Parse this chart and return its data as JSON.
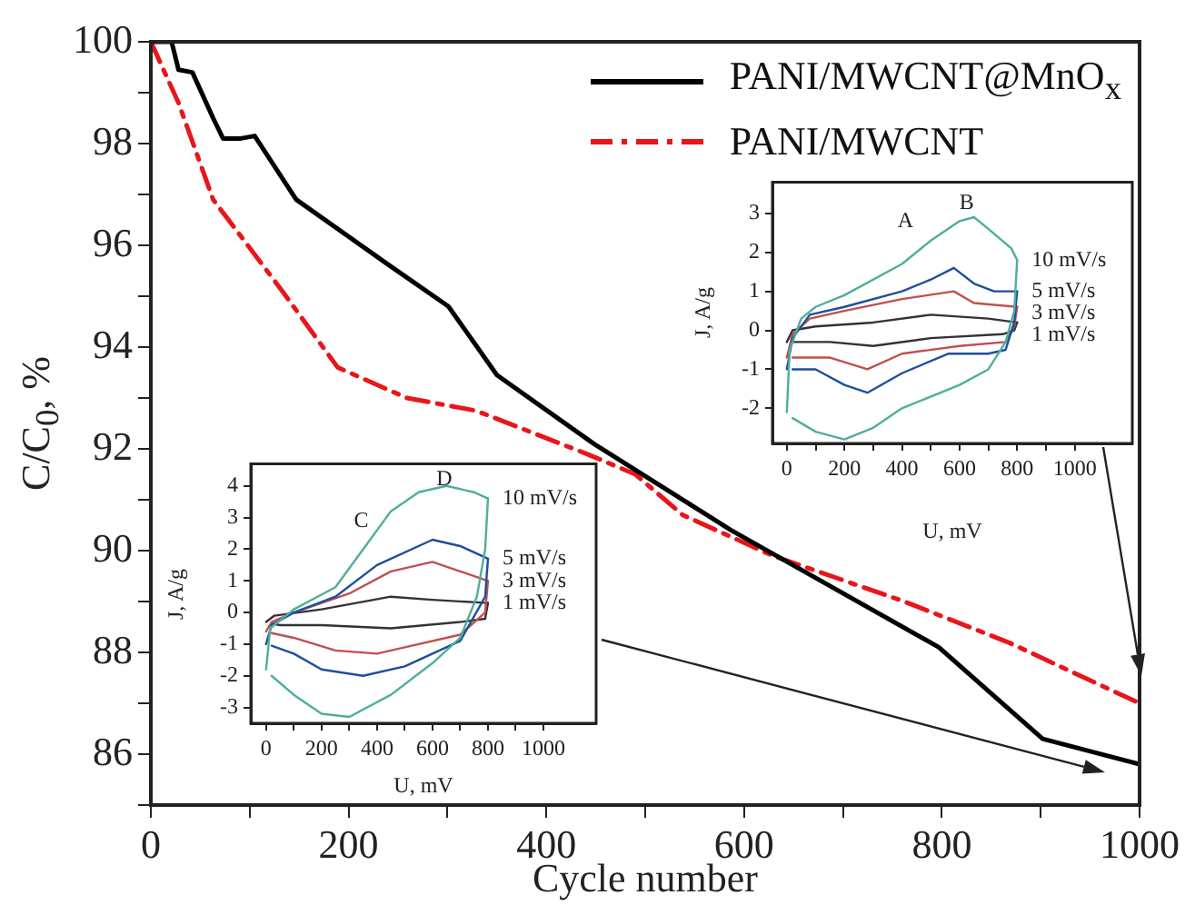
{
  "chart_data": [
    {
      "type": "line",
      "xlabel": "Cycle number",
      "ylabel": "C/C$_{0}$, %",
      "xlim": [
        0,
        1000
      ],
      "ylim": [
        85,
        100
      ],
      "xticks": [
        0,
        {
          "value": 100,
          "label": null
        },
        200,
        {
          "value": 300,
          "label": null
        },
        400,
        {
          "value": 500,
          "label": null
        },
        600,
        {
          "value": 700,
          "label": null
        },
        800,
        {
          "value": 900,
          "label": null
        },
        1000
      ],
      "yticks": [
        {
          "value": 85,
          "label": null
        },
        86,
        {
          "value": 87,
          "label": null
        },
        88,
        {
          "value": 89,
          "label": null
        },
        90,
        {
          "value": 91,
          "label": null
        },
        92,
        {
          "value": 93,
          "label": null
        },
        94,
        {
          "value": 95,
          "label": null
        },
        96,
        {
          "value": 97,
          "label": null
        },
        98,
        {
          "value": 99,
          "label": null
        },
        100
      ],
      "grid": false,
      "legend": "top right",
      "marker": "none",
      "series": [
        {
          "name": "PANI/MWCNT@MnO$_{x}$",
          "color": "#000000",
          "line_style": "solid",
          "x": [
            0,
            21,
            28,
            42,
            63,
            73,
            91,
            105,
            147,
            238,
            301,
            350,
            448,
            587,
            797,
            902,
            1000
          ],
          "values": [
            100,
            100,
            99.45,
            99.4,
            98.5,
            98.1,
            98.1,
            98.15,
            96.9,
            95.65,
            94.8,
            93.45,
            92.1,
            90.4,
            88.1,
            86.3,
            85.8
          ]
        },
        {
          "name": "PANI/MWCNT",
          "color": "#e8161b",
          "line_style": "dashed",
          "x": [
            0,
            14,
            28,
            63,
            133,
            189,
            259,
            329,
            441,
            490,
            538,
            629,
            762,
            867,
            1000
          ],
          "values": [
            100,
            99.4,
            98.8,
            96.9,
            95.1,
            93.6,
            93.0,
            92.75,
            91.9,
            91.5,
            90.7,
            89.9,
            89.0,
            88.2,
            87.0
          ]
        }
      ]
    },
    {
      "type": "line",
      "xlabel": "U, mV",
      "ylabel": "J, A/g",
      "xlim": [
        -50,
        1200
      ],
      "ylim": [
        -2.9,
        3.8
      ],
      "xticks": [
        0,
        {
          "value": 100,
          "label": null
        },
        200,
        {
          "value": 300,
          "label": null
        },
        400,
        {
          "value": 500,
          "label": null
        },
        600,
        {
          "value": 700,
          "label": null
        },
        800,
        {
          "value": 900,
          "label": null
        },
        1000
      ],
      "yticks": [
        -2,
        -1,
        0,
        1,
        2,
        3
      ],
      "grid": false,
      "marker": "none",
      "annotations": [
        "A",
        "B"
      ],
      "series": [
        {
          "name": "10 mV/s",
          "color": "#4fae9c",
          "x": [
            0,
            10,
            50,
            100,
            200,
            400,
            500,
            600,
            650,
            700,
            780,
            800
          ],
          "values": [
            -2.1,
            -0.5,
            0.3,
            0.6,
            0.9,
            1.7,
            2.3,
            2.8,
            2.9,
            2.6,
            2.1,
            1.8
          ]
        },
        {
          "color": "#4fae9c",
          "x": [
            20,
            100,
            200,
            300,
            400,
            600,
            700,
            760,
            790,
            800
          ],
          "values": [
            -2.25,
            -2.6,
            -2.8,
            -2.5,
            -2.0,
            -1.4,
            -1.0,
            -0.3,
            0.5,
            1.8
          ]
        },
        {
          "name": "5 mV/s",
          "color": "#1f4e9c",
          "x": [
            0,
            20,
            80,
            200,
            400,
            500,
            580,
            650,
            720,
            800
          ],
          "values": [
            -1.0,
            -0.2,
            0.4,
            0.6,
            1.0,
            1.3,
            1.6,
            1.2,
            1.0,
            1.0
          ]
        },
        {
          "color": "#1f4e9c",
          "x": [
            20,
            100,
            200,
            280,
            400,
            560,
            700,
            760,
            790,
            800
          ],
          "values": [
            -1.0,
            -1.0,
            -1.4,
            -1.6,
            -1.1,
            -0.6,
            -0.6,
            -0.5,
            0.2,
            1.0
          ]
        },
        {
          "name": "3 mV/s",
          "color": "#c0504d",
          "x": [
            0,
            20,
            80,
            200,
            400,
            580,
            650,
            800
          ],
          "values": [
            -0.7,
            -0.1,
            0.3,
            0.5,
            0.8,
            1.0,
            0.7,
            0.6
          ]
        },
        {
          "color": "#c0504d",
          "x": [
            20,
            150,
            280,
            400,
            600,
            760,
            790,
            800
          ],
          "values": [
            -0.7,
            -0.7,
            -1.0,
            -0.6,
            -0.4,
            -0.3,
            0.1,
            0.6
          ]
        },
        {
          "name": "1 mV/s",
          "color": "#333333",
          "x": [
            0,
            20,
            100,
            300,
            500,
            700,
            800
          ],
          "values": [
            -0.3,
            0.0,
            0.1,
            0.2,
            0.4,
            0.3,
            0.2
          ]
        },
        {
          "color": "#333333",
          "x": [
            20,
            150,
            300,
            500,
            750,
            790,
            800
          ],
          "values": [
            -0.3,
            -0.3,
            -0.4,
            -0.2,
            -0.1,
            0.0,
            0.2
          ]
        }
      ]
    },
    {
      "type": "line",
      "xlabel": "U, mV",
      "ylabel": "J, A/g",
      "xlim": [
        -55,
        1190
      ],
      "ylim": [
        -3.5,
        4.7
      ],
      "xticks": [
        0,
        {
          "value": 100,
          "label": null
        },
        200,
        {
          "value": 300,
          "label": null
        },
        400,
        {
          "value": 500,
          "label": null
        },
        600,
        {
          "value": 700,
          "label": null
        },
        800,
        {
          "value": 900,
          "label": null
        },
        1000
      ],
      "yticks": [
        -3,
        -2,
        -1,
        0,
        1,
        2,
        3,
        4
      ],
      "grid": false,
      "marker": "none",
      "annotations": [
        "C",
        "D"
      ],
      "series": [
        {
          "name": "10 mV/s",
          "color": "#4fae9c",
          "x": [
            0,
            15,
            100,
            250,
            350,
            450,
            550,
            650,
            750,
            800
          ],
          "values": [
            -1.8,
            -0.5,
            0.1,
            0.8,
            2.0,
            3.2,
            3.8,
            4.0,
            3.8,
            3.6
          ]
        },
        {
          "color": "#4fae9c",
          "x": [
            20,
            100,
            200,
            300,
            450,
            600,
            700,
            760,
            790,
            800
          ],
          "values": [
            -2.0,
            -2.6,
            -3.2,
            -3.3,
            -2.6,
            -1.6,
            -0.8,
            0.5,
            2.0,
            3.6
          ]
        },
        {
          "name": "5 mV/s",
          "color": "#1f4e9c",
          "x": [
            0,
            20,
            100,
            250,
            400,
            600,
            700,
            800
          ],
          "values": [
            -1.0,
            -0.4,
            0.0,
            0.5,
            1.5,
            2.3,
            2.1,
            1.7
          ]
        },
        {
          "color": "#1f4e9c",
          "x": [
            20,
            100,
            200,
            350,
            500,
            700,
            790,
            800
          ],
          "values": [
            -1.05,
            -1.3,
            -1.8,
            -2.0,
            -1.7,
            -0.9,
            0.5,
            1.7
          ]
        },
        {
          "name": "3 mV/s",
          "color": "#c0504d",
          "x": [
            0,
            20,
            100,
            300,
            450,
            600,
            700,
            800
          ],
          "values": [
            -0.6,
            -0.3,
            0.0,
            0.6,
            1.3,
            1.6,
            1.3,
            1.0
          ]
        },
        {
          "color": "#c0504d",
          "x": [
            20,
            100,
            250,
            400,
            500,
            700,
            790,
            800
          ],
          "values": [
            -0.65,
            -0.8,
            -1.2,
            -1.3,
            -1.1,
            -0.7,
            0.0,
            1.0
          ]
        },
        {
          "name": "1 mV/s",
          "color": "#333333",
          "x": [
            0,
            30,
            200,
            450,
            600,
            800
          ],
          "values": [
            -0.3,
            -0.1,
            0.1,
            0.5,
            0.4,
            0.3
          ]
        },
        {
          "color": "#333333",
          "x": [
            20,
            50,
            200,
            450,
            700,
            790,
            800
          ],
          "values": [
            -0.35,
            -0.4,
            -0.4,
            -0.5,
            -0.3,
            -0.2,
            0.3
          ]
        }
      ]
    }
  ]
}
